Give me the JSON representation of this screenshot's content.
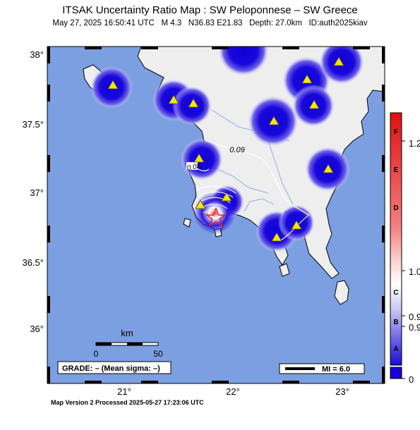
{
  "header": {
    "title": "ITSAK Uncertainty Ratio Map : SW Peloponnese – SW Greece",
    "event_line": "May 27, 2025 16:50:41 UTC   M 4.3   N36.83 E21.83   Depth: 27.0km   ID:auth2025kiav"
  },
  "map": {
    "lat_labels": [
      "38°",
      "37.5°",
      "37°",
      "36.5°",
      "36°"
    ],
    "lon_labels": [
      "21°",
      "22°",
      "23°"
    ],
    "contour_labels": [
      "0.09",
      "0.08"
    ],
    "scale_bar": {
      "unit": "km",
      "tick_start": "0",
      "tick_end": "50"
    },
    "grade_box": "GRADE: – (Mean sigma: –)",
    "mi_box": "MI = 6.0",
    "colors": {
      "sea": "#7b9fe0",
      "land": "#eeeeee",
      "station": "#f7e600",
      "high": "#1400d8",
      "epicenter": "#e02020"
    }
  },
  "colorbar": {
    "letters": [
      "F",
      "E",
      "D",
      "C",
      "B",
      "A"
    ],
    "values": [
      "1.2",
      "1.0",
      "0.9",
      "0.9",
      "0"
    ]
  },
  "footer": "Map Version 2 Processed 2025-05-27 17:23:06 UTC"
}
